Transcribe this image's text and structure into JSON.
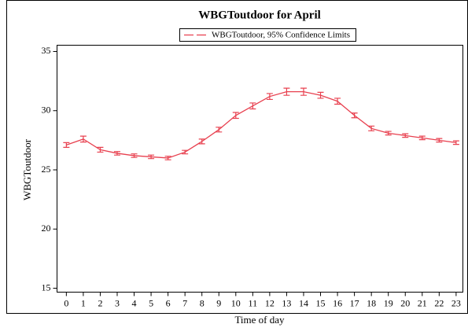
{
  "chart_data": {
    "type": "line",
    "title": "WBGToutdoor for April",
    "x_label": "Time of day",
    "y_label": "WBGToutdoor",
    "x": [
      0,
      1,
      2,
      3,
      4,
      5,
      6,
      7,
      8,
      9,
      10,
      11,
      12,
      13,
      14,
      15,
      16,
      17,
      18,
      19,
      20,
      21,
      22,
      23
    ],
    "series": [
      {
        "name": "WBGToutdoor, 95% Confidence Limits",
        "color": "#e8404f",
        "values": [
          27.1,
          27.6,
          26.7,
          26.4,
          26.2,
          26.1,
          26.0,
          26.5,
          27.4,
          28.4,
          29.6,
          30.4,
          31.2,
          31.6,
          31.6,
          31.3,
          30.8,
          29.6,
          28.5,
          28.1,
          27.9,
          27.7,
          27.5,
          27.3
        ],
        "errors": [
          0.2,
          0.25,
          0.2,
          0.15,
          0.15,
          0.15,
          0.15,
          0.15,
          0.2,
          0.2,
          0.25,
          0.25,
          0.25,
          0.3,
          0.3,
          0.25,
          0.25,
          0.2,
          0.2,
          0.15,
          0.15,
          0.15,
          0.15,
          0.15
        ]
      }
    ],
    "xlim": [
      -0.55,
      23.4
    ],
    "ylim": [
      14.67,
      35.53
    ],
    "xticks": [
      0,
      1,
      2,
      3,
      4,
      5,
      6,
      7,
      8,
      9,
      10,
      11,
      12,
      13,
      14,
      15,
      16,
      17,
      18,
      19,
      20,
      21,
      22,
      23
    ],
    "yticks": [
      15,
      20,
      25,
      30,
      35
    ],
    "grid": false,
    "legend": "top"
  }
}
